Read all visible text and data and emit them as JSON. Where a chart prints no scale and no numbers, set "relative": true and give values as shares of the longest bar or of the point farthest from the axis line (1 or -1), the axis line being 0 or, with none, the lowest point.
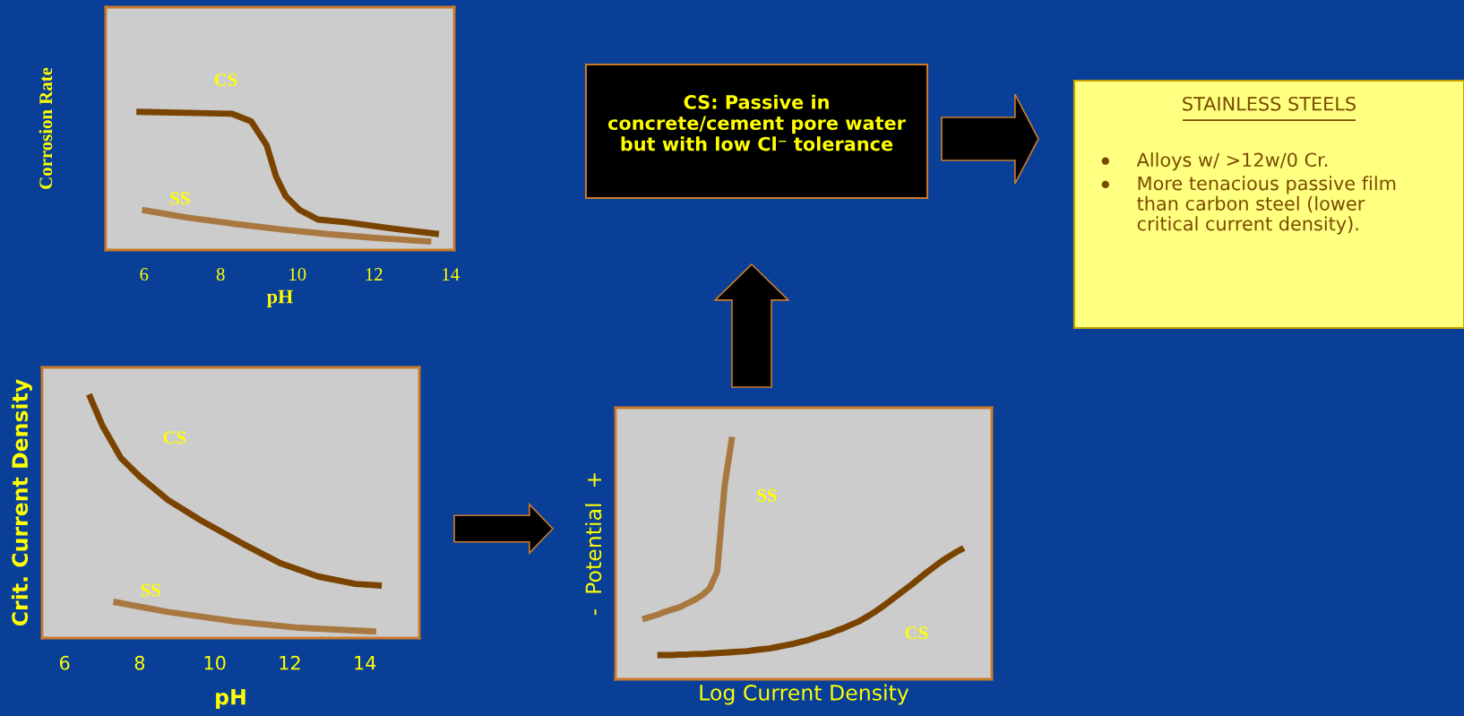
{
  "chart_data": [
    {
      "type": "line",
      "xlabel": "pH",
      "ylabel": "Corrosion Rate",
      "relative": true,
      "tick_labels": "x",
      "xlim": [
        5,
        14.1
      ],
      "xticks": [
        6,
        8,
        10,
        12,
        14
      ],
      "grid": false,
      "legend": false,
      "series": [
        {
          "name": "CS",
          "color": "#7a4400",
          "x": [
            5.8,
            8.3,
            8.8,
            9.2,
            9.45,
            9.7,
            10.06,
            10.55,
            11.3,
            12.5,
            13.7
          ],
          "values": [
            1.0,
            0.986,
            0.93,
            0.76,
            0.53,
            0.39,
            0.29,
            0.22,
            0.2,
            0.155,
            0.115
          ]
        },
        {
          "name": "SS",
          "color": "#a87840",
          "x": [
            5.95,
            7.1,
            8.35,
            9.55,
            10.8,
            12.05,
            13.5
          ],
          "values": [
            0.29,
            0.236,
            0.19,
            0.15,
            0.115,
            0.088,
            0.061
          ]
        }
      ]
    },
    {
      "type": "line",
      "xlabel": "pH",
      "ylabel": "Crit. Current Density",
      "relative": true,
      "tick_labels": "x",
      "xlim": [
        5.4,
        15.45
      ],
      "xticks": [
        6,
        8,
        10,
        12,
        14
      ],
      "grid": false,
      "legend": false,
      "series": [
        {
          "name": "CS",
          "color": "#7a4400",
          "x": [
            6.65,
            7.0,
            7.5,
            8.0,
            8.75,
            9.63,
            10.75,
            11.75,
            12.75,
            13.75,
            14.45
          ],
          "values": [
            1.0,
            0.874,
            0.739,
            0.663,
            0.567,
            0.483,
            0.387,
            0.307,
            0.253,
            0.222,
            0.215
          ]
        },
        {
          "name": "SS",
          "color": "#a87840",
          "x": [
            7.3,
            8.75,
            10.5,
            12.25,
            14.3
          ],
          "values": [
            0.149,
            0.107,
            0.069,
            0.042,
            0.027
          ]
        }
      ]
    },
    {
      "type": "line",
      "xlabel": "Log Current Density",
      "ylabel": "-  Potential  +",
      "relative": true,
      "tick_labels": false,
      "grid": false,
      "legend": false,
      "categories": [
        null,
        null,
        null,
        null,
        null,
        null,
        null,
        null,
        null,
        null,
        null,
        null,
        null,
        null,
        null,
        null,
        null,
        null,
        null,
        null,
        null,
        null,
        null,
        null,
        null,
        null,
        null,
        null,
        null,
        null,
        null,
        null,
        null,
        null,
        null,
        null,
        null,
        null,
        null,
        null,
        null,
        null,
        null,
        null
      ],
      "series": [
        {
          "name": "SS",
          "color": "#a87840",
          "values": [
            0.247,
            0.257,
            0.266,
            0.278,
            0.288,
            0.297,
            0.313,
            0.328,
            0.347,
            0.375,
            0.444,
            0.799,
            1.0,
            null,
            null,
            null,
            null,
            null,
            null,
            null,
            null,
            null,
            null,
            null,
            null,
            null,
            null,
            null,
            null,
            null,
            null,
            null,
            null,
            null,
            null,
            null,
            null,
            null,
            null,
            null,
            null,
            null,
            null,
            null
          ]
        },
        {
          "name": "CS",
          "color": "#7a4400",
          "values": [
            null,
            null,
            0.1,
            0.1,
            0.1,
            0.102,
            0.102,
            0.104,
            0.104,
            0.106,
            0.108,
            0.11,
            0.112,
            0.114,
            0.116,
            0.12,
            0.124,
            0.127,
            0.133,
            0.139,
            0.145,
            0.153,
            0.16,
            0.17,
            0.18,
            0.189,
            0.201,
            0.212,
            0.226,
            0.239,
            0.257,
            0.276,
            0.297,
            0.32,
            0.344,
            0.367,
            0.39,
            0.415,
            0.44,
            0.463,
            0.486,
            0.506,
            0.525,
            0.541
          ]
        }
      ]
    },
    {
      "type": "other",
      "title": "CS: Passive in concrete/cement pore water but with low Cl⁻ tolerance"
    },
    {
      "type": "other",
      "title": "STAINLESS STEELS",
      "annotations": [
        "Alloys w/ >12w/0 Cr.",
        "More tenacious passive film than carbon steel (lower critical current density)."
      ]
    }
  ]
}
